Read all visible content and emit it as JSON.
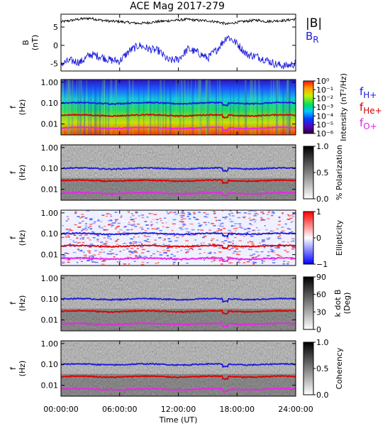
{
  "chart_data": {
    "title": "ACE Mag 2017-279",
    "xlabel": "Time (UT)",
    "x_ticks": [
      "00:00:00",
      "06:00:00",
      "12:00:00",
      "18:00:00",
      "24:00:00"
    ],
    "xlim_hours": [
      0,
      24
    ],
    "panels": [
      {
        "id": "bfield",
        "type": "line",
        "ylabel_main": "B",
        "ylabel_unit": "(nT)",
        "ylim": [
          -7,
          8.5
        ],
        "y_ticks": [
          5,
          0,
          -5
        ],
        "legend": [
          {
            "label": "|B|",
            "color": "#000000"
          },
          {
            "label": "B",
            "sub": "R",
            "color": "#1a1adc"
          }
        ],
        "series": [
          {
            "name": "|B|",
            "color": "#000000",
            "x": [
              0,
              1,
              2,
              3,
              4,
              5,
              6,
              7,
              8,
              9,
              10,
              11,
              12,
              13,
              14,
              15,
              16,
              17,
              18,
              19,
              20,
              21,
              22,
              23,
              24
            ],
            "y": [
              6.4,
              6.8,
              7.2,
              7.4,
              6.9,
              6.6,
              6.5,
              6.2,
              6.0,
              6.2,
              6.5,
              6.7,
              6.9,
              7.1,
              6.8,
              6.7,
              6.4,
              5.8,
              6.3,
              6.6,
              6.9,
              6.5,
              6.7,
              6.8,
              7.2
            ]
          },
          {
            "name": "B_R",
            "color": "#1a1adc",
            "x": [
              0,
              1,
              2,
              3,
              4,
              5,
              6,
              7,
              8,
              9,
              10,
              11,
              12,
              13,
              14,
              15,
              16,
              17,
              18,
              19,
              20,
              21,
              22,
              23,
              24
            ],
            "y": [
              -5.0,
              -4.2,
              -4.6,
              -2.5,
              -3.0,
              -4.0,
              -4.3,
              -1.5,
              0.0,
              -1.0,
              -1.5,
              -4.2,
              -3.8,
              -1.0,
              -2.0,
              -3.5,
              -1.0,
              2.5,
              0.5,
              -2.5,
              -3.0,
              -4.0,
              -5.2,
              -5.6,
              -5.0
            ]
          }
        ]
      },
      {
        "id": "power",
        "type": "heatmap",
        "ylabel_main": "f",
        "ylabel_unit": "(Hz)",
        "y_ticks": [
          "1.00",
          "0.10",
          "0.01"
        ],
        "colorbar_label": "Intensity (nT²/Hz)",
        "colorbar_ticks": [
          "10⁰",
          "10⁻¹",
          "10⁻²",
          "10⁻³",
          "10⁻⁴",
          "10⁻⁵",
          "10⁻⁶"
        ],
        "colorbar_scale": "rainbow",
        "legend": [
          {
            "label": "f",
            "sub": "H+",
            "color": "#1a1adc"
          },
          {
            "label": "f",
            "sub": "He+",
            "color": "#cc0000"
          },
          {
            "label": "f",
            "sub": "O+",
            "color": "#e020e0"
          }
        ]
      },
      {
        "id": "polarization",
        "type": "heatmap",
        "ylabel_main": "f",
        "ylabel_unit": "(Hz)",
        "y_ticks": [
          "1.00",
          "0.10",
          "0.01"
        ],
        "colorbar_label": "% Polarization",
        "colorbar_ticks": [
          "1.0",
          "0.5",
          "0.0"
        ],
        "colorbar_scale": "gray"
      },
      {
        "id": "ellipticity",
        "type": "heatmap",
        "ylabel_main": "f",
        "ylabel_unit": "(Hz)",
        "y_ticks": [
          "1.00",
          "0.10",
          "0.01"
        ],
        "colorbar_label": "Ellipticity",
        "colorbar_ticks": [
          "1",
          "0",
          "−1"
        ],
        "colorbar_scale": "bluewhitered"
      },
      {
        "id": "kdotb",
        "type": "heatmap",
        "ylabel_main": "f",
        "ylabel_unit": "(Hz)",
        "y_ticks": [
          "1.00",
          "0.10",
          "0.01"
        ],
        "colorbar_label": "k dot B (Deg)",
        "colorbar_label_lines": [
          "k dot B",
          "(Deg)"
        ],
        "colorbar_ticks": [
          "90",
          "60",
          "30",
          "0"
        ],
        "colorbar_scale": "gray"
      },
      {
        "id": "coherency",
        "type": "heatmap",
        "ylabel_main": "f",
        "ylabel_unit": "(Hz)",
        "y_ticks": [
          "1.00",
          "0.10",
          "0.01"
        ],
        "colorbar_label": "Coherency",
        "colorbar_ticks": [
          "1.0",
          "0.5",
          "0.0"
        ],
        "colorbar_scale": "gray"
      }
    ],
    "gyro_lines": [
      {
        "name": "f_H+",
        "color": "#1a1adc",
        "level_hz": 0.1
      },
      {
        "name": "f_He+",
        "color": "#dd0000",
        "level_hz": 0.026
      },
      {
        "name": "f_O+",
        "color": "#ee22ee",
        "level_hz": 0.0065
      }
    ]
  }
}
